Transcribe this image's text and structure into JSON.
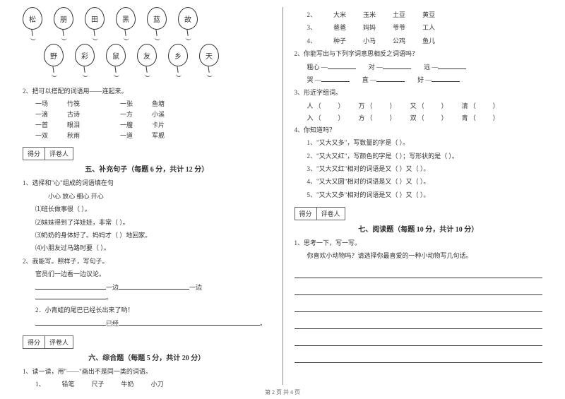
{
  "balloons": {
    "row1": [
      "松",
      "朋",
      "田",
      "黑",
      "蓝",
      "故"
    ],
    "row2": [
      "野",
      "彩",
      "鼠",
      "友",
      "乡",
      "天"
    ]
  },
  "q2_left": {
    "title": "2、把可以搭配的词语用——连起来。",
    "pairs": [
      {
        "a1": "一场",
        "a2": "竹筏",
        "b1": "一张",
        "b2": "鱼塘"
      },
      {
        "a1": "一滴",
        "a2": "古诗",
        "b1": "一方",
        "b2": "小溪"
      },
      {
        "a1": "一首",
        "a2": "眼泪",
        "b1": "一艘",
        "b2": "卡片"
      },
      {
        "a1": "一双",
        "a2": "秋雨",
        "b1": "一道",
        "b2": "军舰"
      }
    ]
  },
  "score_labels": {
    "score": "得分",
    "reviewer": "评卷人"
  },
  "section5": {
    "title": "五、补充句子（每题 6 分，共计 12 分）",
    "q1": {
      "stem": "1、选择和\"心\"组成的词语填在句",
      "options": "小心    放心    细心    开心",
      "items": [
        "⑴班长做事很（        ）。",
        "⑵妹妹得到了洋娃娃，非常（        ）。",
        "⑶奶奶的身体好了。妈妈才（        ）地回家。",
        "⑷小朋友过马路时要（        ）。"
      ]
    },
    "q2": {
      "stem": "2、我能写。照样子，写句子。",
      "line1": "官员们一边看一边议论。",
      "pattern_a": "一边",
      "pattern_b": "一边",
      "sub2": "2．小青蛙的尾巴已经长出来了哟！",
      "blank_label": "已经"
    }
  },
  "section6": {
    "title": "六、综合题（每题 5 分，共计 20 分）",
    "q1": {
      "stem": "1、读一读，用\"——\"画出不是同一类的词语。",
      "rows": [
        {
          "n": "1、",
          "items": [
            "铅笔",
            "尺子",
            "牛奶",
            "小刀"
          ]
        },
        {
          "n": "2、",
          "items": [
            "大米",
            "玉米",
            "土豆",
            "黄豆"
          ]
        },
        {
          "n": "3、",
          "items": [
            "爸爸",
            "妈妈",
            "爷爷",
            "工人"
          ]
        },
        {
          "n": "4、",
          "items": [
            "种子",
            "小马",
            "公鸡",
            "鱼儿"
          ]
        }
      ]
    },
    "q2": {
      "stem": "2、你能写出与下列字词意思相反之词语吗？",
      "rows": [
        {
          "a": "粗心 —",
          "b": "对 —",
          "c": "远 —"
        },
        {
          "a": "哭 —",
          "b": "直 —",
          "c": "好 —"
        }
      ]
    },
    "q3": {
      "stem": "3、形近字组词。",
      "row1": [
        "人",
        "万",
        "又",
        "清"
      ],
      "row2": [
        "入",
        "方",
        "双",
        "青"
      ]
    },
    "q4": {
      "stem": "4、你知道吗？",
      "items": [
        "1、\"又大又多\"，写数量的字是（        ）。",
        "2、\"又大又红\"，写颜色的字是（        ）；写形状的是（        ）。",
        "3、\"又大又红\"相对的词语是又（        ）又（        ）。",
        "4、\"又大又圆\"相对的词语是又（        ）又（        ）。",
        "5、\"又大又多\"相对的词语是又（        ）又（        ）。"
      ]
    }
  },
  "section7": {
    "title": "七、阅读题（每题 10 分，共计 10 分）",
    "q1": {
      "stem": "1、思考一下，写一写。",
      "prompt": "你喜欢小动物吗？请选择你最喜爱的一种小动物写几句话。"
    }
  },
  "footer": "第 2 页 共 4 页"
}
